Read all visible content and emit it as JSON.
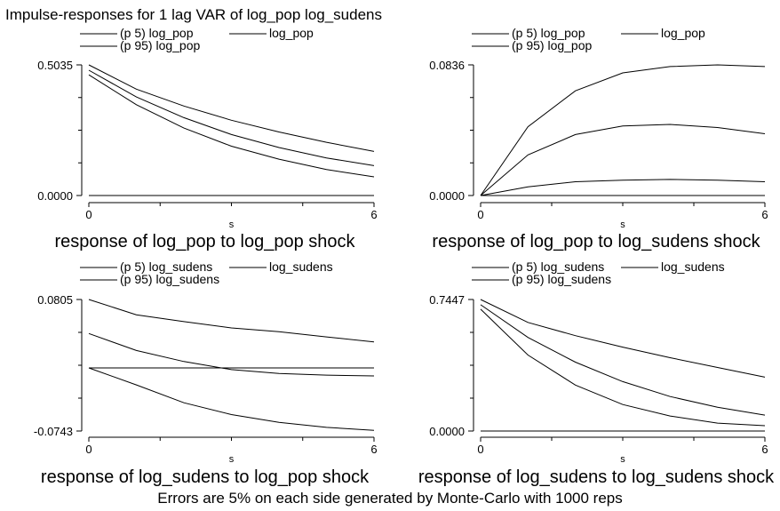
{
  "title": "Impulse-responses for 1 lag VAR of log_pop log_sudens",
  "note": "Errors are 5% on each side generated by Monte-Carlo with 1000 reps",
  "colors": {
    "line": "#000000",
    "background": "#ffffff"
  },
  "chart_data": [
    {
      "type": "line",
      "title": "response of log_pop to log_pop shock",
      "xlabel": "s",
      "xlim": [
        0,
        6
      ],
      "ylim": [
        0.0,
        0.5035
      ],
      "yticks": [
        "0.5035",
        "0.0000"
      ],
      "xticks": [
        "0",
        "6"
      ],
      "x": [
        0,
        1,
        2,
        3,
        4,
        5,
        6
      ],
      "legend": [
        "(p 5) log_pop",
        "log_pop",
        "(p 95) log_pop"
      ],
      "series": [
        {
          "name": "(p 5) log_pop",
          "values": [
            0.465,
            0.35,
            0.26,
            0.19,
            0.14,
            0.1,
            0.072
          ]
        },
        {
          "name": "log_pop",
          "values": [
            0.483,
            0.38,
            0.3,
            0.235,
            0.185,
            0.145,
            0.115
          ]
        },
        {
          "name": "(p 95) log_pop",
          "values": [
            0.5035,
            0.41,
            0.345,
            0.29,
            0.245,
            0.205,
            0.17
          ]
        },
        {
          "name": "",
          "values": [
            0,
            0,
            0,
            0,
            0,
            0,
            0
          ]
        }
      ]
    },
    {
      "type": "line",
      "title": "response of log_pop to log_sudens shock",
      "xlabel": "s",
      "xlim": [
        0,
        6
      ],
      "ylim": [
        0.0,
        0.0836
      ],
      "yticks": [
        "0.0836",
        "0.0000"
      ],
      "xticks": [
        "0",
        "6"
      ],
      "x": [
        0,
        1,
        2,
        3,
        4,
        5,
        6
      ],
      "legend": [
        "(p 5) log_pop",
        "log_pop",
        "(p 95) log_pop"
      ],
      "series": [
        {
          "name": "(p 5) log_pop",
          "values": [
            0,
            0.0055,
            0.0088,
            0.0098,
            0.0103,
            0.0098,
            0.0088
          ]
        },
        {
          "name": "log_pop",
          "values": [
            0,
            0.026,
            0.039,
            0.0445,
            0.0455,
            0.0435,
            0.0395
          ]
        },
        {
          "name": "(p 95) log_pop",
          "values": [
            0,
            0.044,
            0.067,
            0.0785,
            0.0825,
            0.0836,
            0.0825
          ]
        },
        {
          "name": "",
          "values": [
            0,
            0,
            0,
            0,
            0,
            0,
            0
          ]
        }
      ]
    },
    {
      "type": "line",
      "title": "response of log_sudens to log_pop shock",
      "xlabel": "s",
      "xlim": [
        0,
        6
      ],
      "ylim": [
        -0.0743,
        0.0805
      ],
      "yticks": [
        "0.0805",
        "-0.0743"
      ],
      "xticks": [
        "0",
        "6"
      ],
      "x": [
        0,
        1,
        2,
        3,
        4,
        5,
        6
      ],
      "legend": [
        "(p 5) log_sudens",
        "log_sudens",
        "(p 95) log_sudens"
      ],
      "series": [
        {
          "name": "(p 5) log_sudens",
          "values": [
            0.0,
            -0.02,
            -0.041,
            -0.055,
            -0.064,
            -0.07,
            -0.0735
          ]
        },
        {
          "name": "log_sudens",
          "values": [
            0.0404,
            0.0205,
            0.0075,
            -0.002,
            -0.0065,
            -0.0085,
            -0.0095
          ]
        },
        {
          "name": "(p 95) log_sudens",
          "values": [
            0.0805,
            0.0625,
            0.0545,
            0.047,
            0.0425,
            0.0365,
            0.0305
          ]
        },
        {
          "name": "",
          "values": [
            0,
            0,
            0,
            0,
            0,
            0,
            0
          ]
        }
      ]
    },
    {
      "type": "line",
      "title": "response of log_sudens to log_sudens shock",
      "xlabel": "s",
      "xlim": [
        0,
        6
      ],
      "ylim": [
        0.0,
        0.7447
      ],
      "yticks": [
        "0.7447",
        "0.0000"
      ],
      "xticks": [
        "0",
        "6"
      ],
      "x": [
        0,
        1,
        2,
        3,
        4,
        5,
        6
      ],
      "legend": [
        "(p 5) log_sudens",
        "log_sudens",
        "(p 95) log_sudens"
      ],
      "series": [
        {
          "name": "(p 5) log_sudens",
          "values": [
            0.69,
            0.43,
            0.26,
            0.15,
            0.085,
            0.045,
            0.03
          ]
        },
        {
          "name": "log_sudens",
          "values": [
            0.715,
            0.53,
            0.39,
            0.28,
            0.195,
            0.135,
            0.09
          ]
        },
        {
          "name": "(p 95) log_sudens",
          "values": [
            0.7447,
            0.615,
            0.54,
            0.475,
            0.415,
            0.36,
            0.305
          ]
        },
        {
          "name": "",
          "values": [
            0,
            0,
            0,
            0,
            0,
            0,
            0
          ]
        }
      ]
    }
  ]
}
